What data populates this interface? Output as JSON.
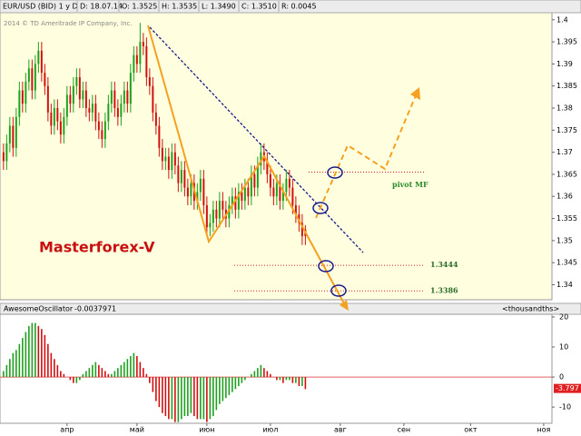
{
  "chart_data": [
    {
      "type": "candlestick",
      "title": "EUR/USD (BID) 1 y D",
      "info": [
        "D: 18.07.14",
        "O: 1.3525",
        "H: 1.3535",
        "L: 1.3490",
        "C: 1.3510",
        "R: 0.0045"
      ],
      "copyright": "2014 © TD Ameritrade IP Company, Inc.",
      "watermark": "Masterforex-V",
      "up_color": "#1fa01f",
      "down_color": "#d01010",
      "background": "#ffffe0",
      "ylim": [
        1.3366,
        1.4016
      ],
      "yticks": [
        1.34,
        1.345,
        1.35,
        1.355,
        1.36,
        1.365,
        1.37,
        1.375,
        1.38,
        1.385,
        1.39,
        1.395,
        1.4
      ],
      "xlim": [
        -1.1,
        172.6
      ],
      "xticks": [
        {
          "value": 20,
          "label": "апр"
        },
        {
          "value": 42,
          "label": "май"
        },
        {
          "value": 64,
          "label": "июн"
        },
        {
          "value": 84,
          "label": "июл"
        },
        {
          "value": 106,
          "label": "авг"
        },
        {
          "value": 126,
          "label": "сен"
        },
        {
          "value": 147,
          "label": "окт"
        },
        {
          "value": 170,
          "label": "ноя"
        }
      ],
      "levels": [
        {
          "value": 1.3655,
          "label": "pivot MF"
        },
        {
          "value": 1.3444,
          "label": "1.3444"
        },
        {
          "value": 1.3386,
          "label": "1.3386"
        }
      ],
      "ohlc": [
        [
          1.37,
          1.372,
          1.366,
          1.368
        ],
        [
          1.368,
          1.374,
          1.366,
          1.372
        ],
        [
          1.372,
          1.378,
          1.37,
          1.376
        ],
        [
          1.376,
          1.378,
          1.369,
          1.371
        ],
        [
          1.371,
          1.38,
          1.369,
          1.378
        ],
        [
          1.378,
          1.386,
          1.376,
          1.384
        ],
        [
          1.384,
          1.386,
          1.379,
          1.381
        ],
        [
          1.381,
          1.388,
          1.379,
          1.386
        ],
        [
          1.386,
          1.391,
          1.384,
          1.389
        ],
        [
          1.389,
          1.391,
          1.382,
          1.384
        ],
        [
          1.384,
          1.392,
          1.382,
          1.39
        ],
        [
          1.39,
          1.395,
          1.388,
          1.393
        ],
        [
          1.393,
          1.395,
          1.386,
          1.388
        ],
        [
          1.388,
          1.39,
          1.383,
          1.385
        ],
        [
          1.385,
          1.387,
          1.377,
          1.379
        ],
        [
          1.379,
          1.381,
          1.374,
          1.376
        ],
        [
          1.376,
          1.382,
          1.374,
          1.38
        ],
        [
          1.38,
          1.382,
          1.375,
          1.377
        ],
        [
          1.377,
          1.379,
          1.372,
          1.374
        ],
        [
          1.374,
          1.38,
          1.372,
          1.378
        ],
        [
          1.378,
          1.385,
          1.376,
          1.383
        ],
        [
          1.383,
          1.385,
          1.379,
          1.381
        ],
        [
          1.381,
          1.387,
          1.379,
          1.385
        ],
        [
          1.385,
          1.389,
          1.383,
          1.387
        ],
        [
          1.387,
          1.389,
          1.38,
          1.382
        ],
        [
          1.382,
          1.386,
          1.38,
          1.384
        ],
        [
          1.384,
          1.386,
          1.378,
          1.38
        ],
        [
          1.38,
          1.382,
          1.377,
          1.379
        ],
        [
          1.379,
          1.383,
          1.377,
          1.381
        ],
        [
          1.381,
          1.383,
          1.375,
          1.377
        ],
        [
          1.377,
          1.379,
          1.373,
          1.375
        ],
        [
          1.375,
          1.377,
          1.371,
          1.373
        ],
        [
          1.373,
          1.379,
          1.371,
          1.377
        ],
        [
          1.377,
          1.383,
          1.375,
          1.381
        ],
        [
          1.381,
          1.386,
          1.379,
          1.384
        ],
        [
          1.384,
          1.386,
          1.378,
          1.38
        ],
        [
          1.38,
          1.382,
          1.376,
          1.378
        ],
        [
          1.378,
          1.383,
          1.376,
          1.381
        ],
        [
          1.381,
          1.386,
          1.379,
          1.384
        ],
        [
          1.384,
          1.386,
          1.379,
          1.381
        ],
        [
          1.381,
          1.39,
          1.379,
          1.388
        ],
        [
          1.388,
          1.394,
          1.386,
          1.392
        ],
        [
          1.392,
          1.394,
          1.388,
          1.39
        ],
        [
          1.39,
          1.3993,
          1.388,
          1.395
        ],
        [
          1.395,
          1.397,
          1.392,
          1.394
        ],
        [
          1.394,
          1.396,
          1.385,
          1.387
        ],
        [
          1.387,
          1.389,
          1.383,
          1.385
        ],
        [
          1.385,
          1.387,
          1.377,
          1.379
        ],
        [
          1.379,
          1.381,
          1.374,
          1.376
        ],
        [
          1.376,
          1.378,
          1.369,
          1.371
        ],
        [
          1.371,
          1.373,
          1.366,
          1.368
        ],
        [
          1.368,
          1.371,
          1.366,
          1.369
        ],
        [
          1.369,
          1.371,
          1.364,
          1.366
        ],
        [
          1.366,
          1.372,
          1.364,
          1.37
        ],
        [
          1.37,
          1.372,
          1.365,
          1.367
        ],
        [
          1.367,
          1.369,
          1.361,
          1.363
        ],
        [
          1.363,
          1.368,
          1.361,
          1.366
        ],
        [
          1.366,
          1.368,
          1.36,
          1.362
        ],
        [
          1.362,
          1.364,
          1.358,
          1.36
        ],
        [
          1.36,
          1.365,
          1.358,
          1.363
        ],
        [
          1.363,
          1.365,
          1.357,
          1.359
        ],
        [
          1.359,
          1.363,
          1.357,
          1.361
        ],
        [
          1.361,
          1.366,
          1.359,
          1.364
        ],
        [
          1.364,
          1.366,
          1.356,
          1.358
        ],
        [
          1.358,
          1.36,
          1.351,
          1.353
        ],
        [
          1.353,
          1.356,
          1.351,
          1.354
        ],
        [
          1.354,
          1.359,
          1.352,
          1.357
        ],
        [
          1.357,
          1.359,
          1.353,
          1.355
        ],
        [
          1.355,
          1.361,
          1.353,
          1.359
        ],
        [
          1.359,
          1.361,
          1.355,
          1.357
        ],
        [
          1.357,
          1.359,
          1.353,
          1.355
        ],
        [
          1.355,
          1.36,
          1.353,
          1.358
        ],
        [
          1.358,
          1.362,
          1.356,
          1.36
        ],
        [
          1.36,
          1.362,
          1.355,
          1.357
        ],
        [
          1.357,
          1.363,
          1.355,
          1.361
        ],
        [
          1.361,
          1.363,
          1.357,
          1.359
        ],
        [
          1.359,
          1.364,
          1.357,
          1.362
        ],
        [
          1.362,
          1.364,
          1.358,
          1.36
        ],
        [
          1.36,
          1.367,
          1.358,
          1.365
        ],
        [
          1.365,
          1.367,
          1.36,
          1.362
        ],
        [
          1.362,
          1.369,
          1.36,
          1.367
        ],
        [
          1.367,
          1.372,
          1.365,
          1.37
        ],
        [
          1.37,
          1.372,
          1.366,
          1.368
        ],
        [
          1.368,
          1.37,
          1.363,
          1.365
        ],
        [
          1.365,
          1.367,
          1.36,
          1.362
        ],
        [
          1.362,
          1.364,
          1.358,
          1.36
        ],
        [
          1.36,
          1.365,
          1.358,
          1.363
        ],
        [
          1.363,
          1.365,
          1.357,
          1.359
        ],
        [
          1.359,
          1.363,
          1.357,
          1.361
        ],
        [
          1.361,
          1.366,
          1.359,
          1.364
        ],
        [
          1.364,
          1.366,
          1.36,
          1.362
        ],
        [
          1.362,
          1.364,
          1.356,
          1.358
        ],
        [
          1.358,
          1.36,
          1.354,
          1.356
        ],
        [
          1.356,
          1.358,
          1.352,
          1.354
        ],
        [
          1.354,
          1.356,
          1.349,
          1.351
        ],
        [
          1.3525,
          1.3535,
          1.349,
          1.351
        ]
      ]
    },
    {
      "type": "bar",
      "title": "AwesomeOscillator",
      "value_text": "-0.0037971",
      "units": "<thousandths>",
      "up_color": "#1fa01f",
      "down_color": "#d01010",
      "ylim": [
        -15.4,
        20.9
      ],
      "yticks": [
        -10,
        0,
        10,
        20
      ],
      "last_value": {
        "value": -3.797,
        "label": "-3.797"
      },
      "values": [
        2,
        4,
        6,
        8,
        9,
        11,
        13,
        15,
        17,
        18,
        18,
        17,
        16,
        14,
        11,
        8,
        6,
        4,
        2,
        1,
        0,
        -1,
        -2,
        -2,
        -1,
        1,
        2,
        3,
        4,
        5,
        4,
        3,
        2,
        1,
        1,
        2,
        3,
        4,
        5,
        6,
        7,
        8,
        7,
        5,
        3,
        1,
        -2,
        -5,
        -8,
        -10,
        -12,
        -13,
        -14,
        -14,
        -15,
        -15,
        -14,
        -13,
        -13,
        -12,
        -13,
        -14,
        -14,
        -14,
        -15,
        -14,
        -13,
        -11,
        -9,
        -8,
        -7,
        -6,
        -5,
        -4,
        -3,
        -2,
        -1,
        0,
        1,
        2,
        3,
        4,
        3,
        2,
        1,
        0,
        -1,
        -1,
        -2,
        -1,
        -1,
        -2,
        -2,
        -3,
        -3,
        -4
      ]
    }
  ]
}
